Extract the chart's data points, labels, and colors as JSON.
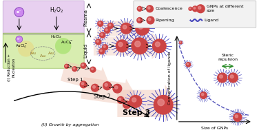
{
  "bg_color": "#ffffff",
  "plasma_box_color": "#e8d0f0",
  "liquid_box_color": "#d8edb0",
  "gnp_core_color": "#cc4444",
  "gnp_core_light": "#e89090",
  "gnp_spike_color": "#4444bb",
  "arrow_color": "#f0c8b8",
  "curve_color": "#5555bb",
  "graph_xlabel": "Size of GNPs",
  "graph_ylabel": "Concentration of ligands",
  "graph_annotation": "Steric\nrepulsion",
  "plasma_label": "Plasma",
  "liquid_label": "Liquid",
  "step1_label": "Step 1",
  "step2_label": "Step 2",
  "step3_label": "Step 3",
  "nucleation_label": "(I) Reduction +\nNucleation",
  "growth_label": "(II) Growth by aggregation",
  "coalescence_label": "Coalescence",
  "ripening_label": "Ripening",
  "gnps_size_label": "GNPs at different\nsize",
  "ligand_label": "Ligand"
}
